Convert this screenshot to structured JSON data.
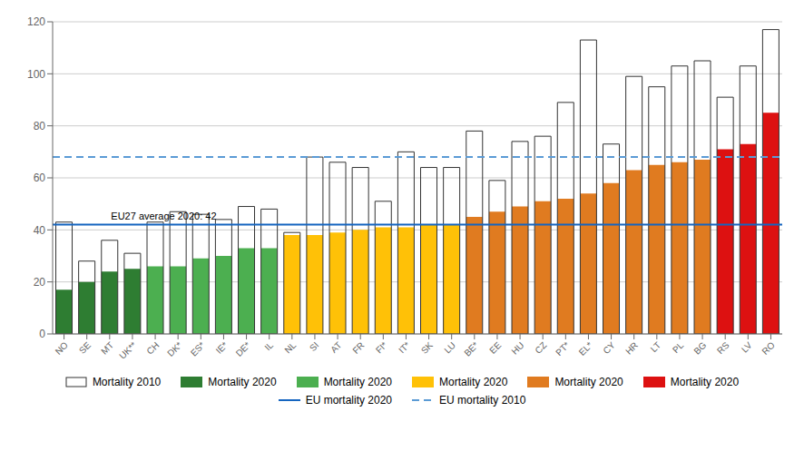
{
  "chart_data": {
    "type": "bar",
    "categories": [
      "NO",
      "SE",
      "MT",
      "UK**",
      "CH",
      "DK*",
      "ES*",
      "IE*",
      "DE*",
      "IL",
      "NL",
      "SI",
      "AT",
      "FR",
      "FI*",
      "IT*",
      "SK",
      "LU",
      "BE*",
      "EE",
      "HU",
      "CZ",
      "PT*",
      "EL*",
      "CY",
      "HR",
      "LT",
      "PL",
      "BG",
      "RS",
      "LV",
      "RO"
    ],
    "series": [
      {
        "name": "Mortality 2010",
        "color": "#333333",
        "values": [
          43,
          28,
          36,
          31,
          43,
          47,
          46,
          44,
          49,
          48,
          39,
          68,
          66,
          64,
          51,
          70,
          64,
          64,
          78,
          59,
          74,
          76,
          89,
          113,
          73,
          99,
          95,
          103,
          105,
          91,
          103,
          117
        ]
      },
      {
        "name": "Mortality 2020",
        "colors": [
          "#2e7d32",
          "#2e7d32",
          "#2e7d32",
          "#2e7d32",
          "#4caf50",
          "#4caf50",
          "#4caf50",
          "#4caf50",
          "#4caf50",
          "#4caf50",
          "#ffc107",
          "#ffc107",
          "#ffc107",
          "#ffc107",
          "#ffc107",
          "#ffc107",
          "#ffc107",
          "#ffc107",
          "#e07b20",
          "#e07b20",
          "#e07b20",
          "#e07b20",
          "#e07b20",
          "#e07b20",
          "#e07b20",
          "#e07b20",
          "#e07b20",
          "#e07b20",
          "#e07b20",
          "#dd1111",
          "#dd1111",
          "#dd1111"
        ],
        "values": [
          17,
          20,
          24,
          25,
          26,
          26,
          29,
          30,
          33,
          33,
          38,
          38,
          39,
          40,
          41,
          41,
          42,
          42,
          45,
          47,
          49,
          51,
          52,
          54,
          58,
          63,
          65,
          66,
          67,
          71,
          73,
          85
        ]
      }
    ],
    "reference_lines": [
      {
        "name": "EU mortality 2020",
        "value": 42,
        "color": "#1565c0",
        "line_style": "solid",
        "label": "EU27 average 2020: 42"
      },
      {
        "name": "EU mortality 2010",
        "value": 68,
        "color": "#5b9bd5",
        "line_style": "dashed"
      }
    ],
    "ylim": [
      0,
      120
    ],
    "yticks": [
      0,
      20,
      40,
      60,
      80,
      100,
      120
    ],
    "grid": true,
    "legend": "bottom"
  }
}
